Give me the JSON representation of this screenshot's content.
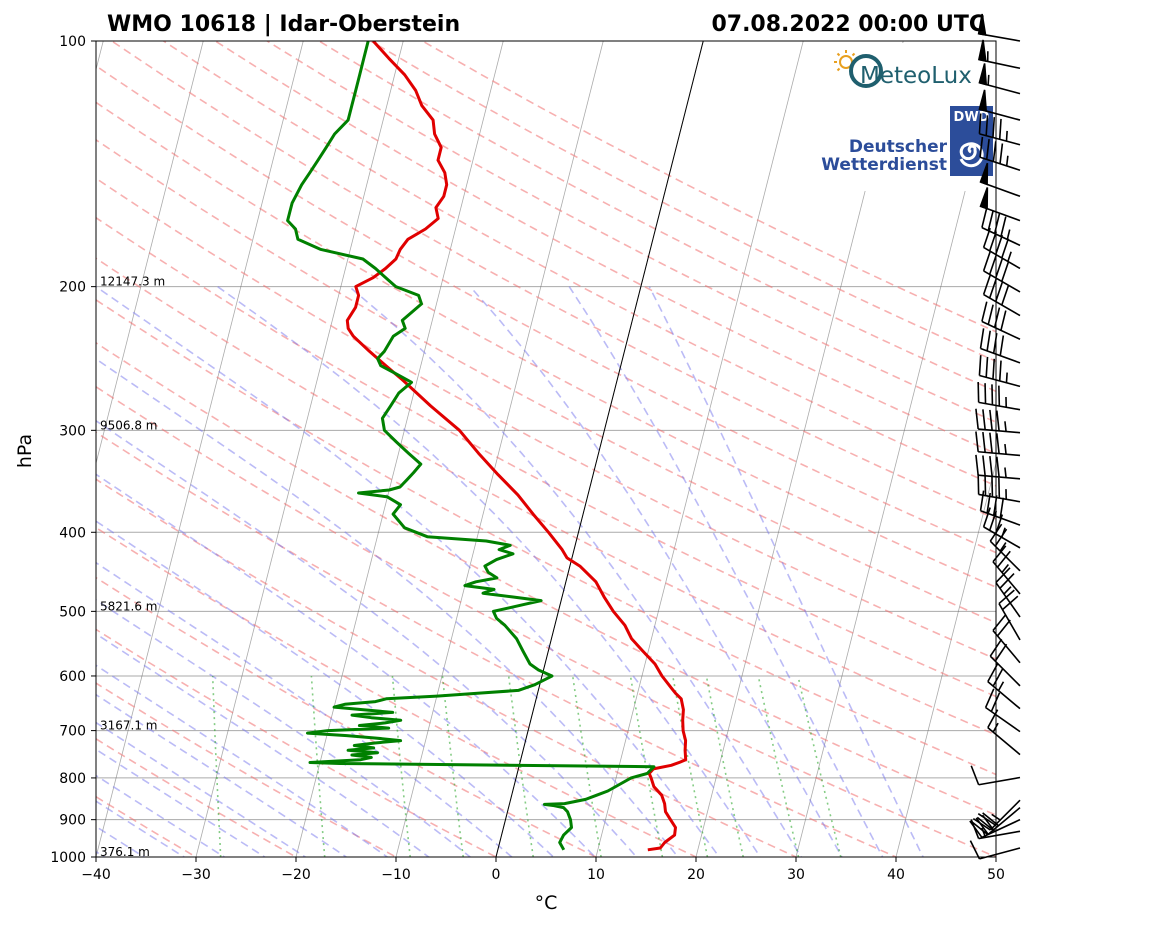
{
  "chart_data": {
    "type": "skew-t",
    "title_left": "WMO 10618 | Idar-Oberstein",
    "title_right": "07.08.2022 00:00 UTC",
    "xlabel": "°C",
    "ylabel": "hPa",
    "xlim": [
      -40,
      50
    ],
    "ylim": [
      1000,
      100
    ],
    "log_pressure_axis": true,
    "grid": true,
    "x_ticks": [
      "−40",
      "−30",
      "−20",
      "−10",
      "0",
      "10",
      "20",
      "30",
      "40",
      "50"
    ],
    "x_tick_values": [
      -40,
      -30,
      -20,
      -10,
      0,
      10,
      20,
      30,
      40,
      50
    ],
    "y_ticks": [
      "100",
      "200",
      "300",
      "400",
      "500",
      "600",
      "700",
      "800",
      "900",
      "1000"
    ],
    "y_tick_values": [
      100,
      200,
      300,
      400,
      500,
      600,
      700,
      800,
      900,
      1000
    ],
    "height_labels": [
      {
        "p": 200,
        "text": "12147.3 m"
      },
      {
        "p": 300,
        "text": "9506.8 m"
      },
      {
        "p": 500,
        "text": "5821.6 m"
      },
      {
        "p": 700,
        "text": "3167.1 m"
      },
      {
        "p": 1000,
        "text": "376.1 m"
      }
    ],
    "series": [
      {
        "name": "",
        "color": "#e00000",
        "points": [
          [
            980,
            15.0
          ],
          [
            975,
            16.2
          ],
          [
            960,
            16.5
          ],
          [
            940,
            17.3
          ],
          [
            920,
            17.2
          ],
          [
            900,
            16.5
          ],
          [
            880,
            15.8
          ],
          [
            860,
            15.5
          ],
          [
            840,
            15.0
          ],
          [
            820,
            14.0
          ],
          [
            800,
            13.5
          ],
          [
            790,
            13.2
          ],
          [
            780,
            13.5
          ],
          [
            772,
            15.2
          ],
          [
            765,
            16.0
          ],
          [
            760,
            16.5
          ],
          [
            740,
            16.2
          ],
          [
            720,
            16.0
          ],
          [
            700,
            15.5
          ],
          [
            680,
            15.2
          ],
          [
            660,
            15.0
          ],
          [
            640,
            14.5
          ],
          [
            630,
            13.8
          ],
          [
            620,
            13.2
          ],
          [
            600,
            12.0
          ],
          [
            580,
            11.0
          ],
          [
            560,
            9.5
          ],
          [
            540,
            8.0
          ],
          [
            520,
            7.0
          ],
          [
            500,
            5.5
          ],
          [
            480,
            4.2
          ],
          [
            460,
            3.0
          ],
          [
            440,
            1.0
          ],
          [
            430,
            -0.5
          ],
          [
            420,
            -1.2
          ],
          [
            400,
            -3.0
          ],
          [
            380,
            -5.0
          ],
          [
            360,
            -7.0
          ],
          [
            340,
            -9.5
          ],
          [
            320,
            -12.0
          ],
          [
            300,
            -14.5
          ],
          [
            280,
            -18.0
          ],
          [
            260,
            -21.5
          ],
          [
            250,
            -23.5
          ],
          [
            240,
            -25.5
          ],
          [
            230,
            -27.5
          ],
          [
            225,
            -28.2
          ],
          [
            220,
            -28.5
          ],
          [
            212,
            -28.0
          ],
          [
            205,
            -28.0
          ],
          [
            200,
            -28.5
          ],
          [
            195,
            -27.0
          ],
          [
            190,
            -26.0
          ],
          [
            185,
            -25.2
          ],
          [
            180,
            -25.0
          ],
          [
            175,
            -24.5
          ],
          [
            170,
            -23.0
          ],
          [
            165,
            -22.0
          ],
          [
            160,
            -22.5
          ],
          [
            155,
            -22.0
          ],
          [
            150,
            -22.0
          ],
          [
            145,
            -22.5
          ],
          [
            140,
            -23.5
          ],
          [
            135,
            -23.5
          ],
          [
            130,
            -24.5
          ],
          [
            125,
            -25.0
          ],
          [
            120,
            -26.5
          ],
          [
            115,
            -27.5
          ],
          [
            110,
            -29.0
          ],
          [
            105,
            -31.0
          ],
          [
            100,
            -33.0
          ]
        ]
      },
      {
        "name": "",
        "color": "#008000",
        "points": [
          [
            980,
            6.6
          ],
          [
            960,
            6.0
          ],
          [
            940,
            6.2
          ],
          [
            920,
            6.8
          ],
          [
            900,
            6.5
          ],
          [
            880,
            6.0
          ],
          [
            870,
            5.5
          ],
          [
            865,
            4.5
          ],
          [
            862,
            3.5
          ],
          [
            860,
            5.5
          ],
          [
            850,
            7.5
          ],
          [
            840,
            8.5
          ],
          [
            830,
            9.5
          ],
          [
            815,
            10.5
          ],
          [
            800,
            11.5
          ],
          [
            790,
            13.0
          ],
          [
            775,
            13.5
          ],
          [
            768,
            -18.0
          ],
          [
            766,
            -21.0
          ],
          [
            760,
            -16.0
          ],
          [
            755,
            -15.0
          ],
          [
            750,
            -17.0
          ],
          [
            745,
            -14.5
          ],
          [
            740,
            -17.5
          ],
          [
            735,
            -15.0
          ],
          [
            730,
            -17.0
          ],
          [
            725,
            -15.0
          ],
          [
            720,
            -12.5
          ],
          [
            715,
            -15.0
          ],
          [
            710,
            -18.0
          ],
          [
            705,
            -22.0
          ],
          [
            700,
            -20.0
          ],
          [
            695,
            -14.0
          ],
          [
            690,
            -17.0
          ],
          [
            685,
            -14.5
          ],
          [
            680,
            -13.0
          ],
          [
            675,
            -16.0
          ],
          [
            670,
            -18.0
          ],
          [
            665,
            -14.0
          ],
          [
            660,
            -17.0
          ],
          [
            655,
            -20.0
          ],
          [
            650,
            -19.0
          ],
          [
            645,
            -16.0
          ],
          [
            640,
            -15.0
          ],
          [
            635,
            -10.0
          ],
          [
            630,
            -6.0
          ],
          [
            625,
            -2.0
          ],
          [
            615,
            -0.5
          ],
          [
            605,
            0.5
          ],
          [
            600,
            1.0
          ],
          [
            590,
            -0.5
          ],
          [
            580,
            -1.5
          ],
          [
            560,
            -2.5
          ],
          [
            540,
            -3.5
          ],
          [
            520,
            -5.0
          ],
          [
            510,
            -6.0
          ],
          [
            500,
            -6.5
          ],
          [
            495,
            -5.0
          ],
          [
            490,
            -3.5
          ],
          [
            485,
            -2.0
          ],
          [
            480,
            -5.0
          ],
          [
            475,
            -8.0
          ],
          [
            470,
            -7.0
          ],
          [
            465,
            -10.0
          ],
          [
            460,
            -9.0
          ],
          [
            455,
            -7.0
          ],
          [
            448,
            -8.0
          ],
          [
            440,
            -8.5
          ],
          [
            432,
            -7.5
          ],
          [
            425,
            -6.0
          ],
          [
            420,
            -7.5
          ],
          [
            415,
            -6.5
          ],
          [
            410,
            -9.0
          ],
          [
            405,
            -15.0
          ],
          [
            395,
            -17.5
          ],
          [
            380,
            -19.0
          ],
          [
            370,
            -18.5
          ],
          [
            362,
            -20.0
          ],
          [
            358,
            -23.0
          ],
          [
            355,
            -20.0
          ],
          [
            352,
            -19.0
          ],
          [
            345,
            -18.5
          ],
          [
            338,
            -18.0
          ],
          [
            330,
            -17.5
          ],
          [
            320,
            -19.0
          ],
          [
            310,
            -20.5
          ],
          [
            300,
            -22.0
          ],
          [
            290,
            -22.5
          ],
          [
            280,
            -22.0
          ],
          [
            270,
            -21.5
          ],
          [
            262,
            -20.5
          ],
          [
            255,
            -22.5
          ],
          [
            250,
            -24.0
          ],
          [
            245,
            -24.5
          ],
          [
            240,
            -24.0
          ],
          [
            230,
            -23.5
          ],
          [
            225,
            -22.5
          ],
          [
            220,
            -23.0
          ],
          [
            210,
            -21.5
          ],
          [
            205,
            -22.0
          ],
          [
            200,
            -24.5
          ],
          [
            196,
            -25.5
          ],
          [
            190,
            -27.0
          ],
          [
            185,
            -28.5
          ],
          [
            180,
            -33.0
          ],
          [
            175,
            -35.5
          ],
          [
            170,
            -36.0
          ],
          [
            166,
            -37.0
          ],
          [
            162,
            -37.0
          ],
          [
            158,
            -37.0
          ],
          [
            150,
            -36.5
          ],
          [
            145,
            -36.0
          ],
          [
            140,
            -35.5
          ],
          [
            135,
            -35.0
          ],
          [
            130,
            -34.5
          ],
          [
            125,
            -33.5
          ],
          [
            120,
            -33.5
          ],
          [
            115,
            -33.5
          ],
          [
            110,
            -33.5
          ],
          [
            105,
            -33.5
          ],
          [
            100,
            -33.5
          ]
        ]
      }
    ],
    "wind_barbs": [
      {
        "p": 100,
        "dir": 280,
        "speed": 50
      },
      {
        "p": 108,
        "dir": 282,
        "speed": 55
      },
      {
        "p": 116,
        "dir": 285,
        "speed": 55
      },
      {
        "p": 125,
        "dir": 285,
        "speed": 50
      },
      {
        "p": 134,
        "dir": 285,
        "speed": 45
      },
      {
        "p": 144,
        "dir": 288,
        "speed": 45
      },
      {
        "p": 155,
        "dir": 290,
        "speed": 50
      },
      {
        "p": 166,
        "dir": 290,
        "speed": 50
      },
      {
        "p": 178,
        "dir": 295,
        "speed": 45
      },
      {
        "p": 190,
        "dir": 300,
        "speed": 45
      },
      {
        "p": 203,
        "dir": 300,
        "speed": 40
      },
      {
        "p": 217,
        "dir": 300,
        "speed": 40
      },
      {
        "p": 232,
        "dir": 295,
        "speed": 40
      },
      {
        "p": 248,
        "dir": 290,
        "speed": 40
      },
      {
        "p": 265,
        "dir": 285,
        "speed": 45
      },
      {
        "p": 283,
        "dir": 280,
        "speed": 45
      },
      {
        "p": 302,
        "dir": 275,
        "speed": 45
      },
      {
        "p": 322,
        "dir": 275,
        "speed": 45
      },
      {
        "p": 344,
        "dir": 275,
        "speed": 45
      },
      {
        "p": 367,
        "dir": 280,
        "speed": 45
      },
      {
        "p": 392,
        "dir": 290,
        "speed": 40
      },
      {
        "p": 418,
        "dir": 300,
        "speed": 35
      },
      {
        "p": 446,
        "dir": 315,
        "speed": 25
      },
      {
        "p": 476,
        "dir": 320,
        "speed": 25
      },
      {
        "p": 508,
        "dir": 325,
        "speed": 25
      },
      {
        "p": 542,
        "dir": 330,
        "speed": 20
      },
      {
        "p": 578,
        "dir": 320,
        "speed": 20
      },
      {
        "p": 617,
        "dir": 315,
        "speed": 20
      },
      {
        "p": 658,
        "dir": 310,
        "speed": 25
      },
      {
        "p": 702,
        "dir": 305,
        "speed": 20
      },
      {
        "p": 749,
        "dir": 310,
        "speed": 15
      },
      {
        "p": 799,
        "dir": 260,
        "speed": 10
      },
      {
        "p": 852,
        "dir": 225,
        "speed": 25
      },
      {
        "p": 870,
        "dir": 230,
        "speed": 30
      },
      {
        "p": 900,
        "dir": 245,
        "speed": 30
      },
      {
        "p": 930,
        "dir": 260,
        "speed": 15
      },
      {
        "p": 975,
        "dir": 255,
        "speed": 10
      }
    ]
  },
  "logos": {
    "meteolux_text": "MeteoLux",
    "dwd_badge": "DWD",
    "dwd_line1": "Deutscher",
    "dwd_line2": "Wetterdienst"
  }
}
